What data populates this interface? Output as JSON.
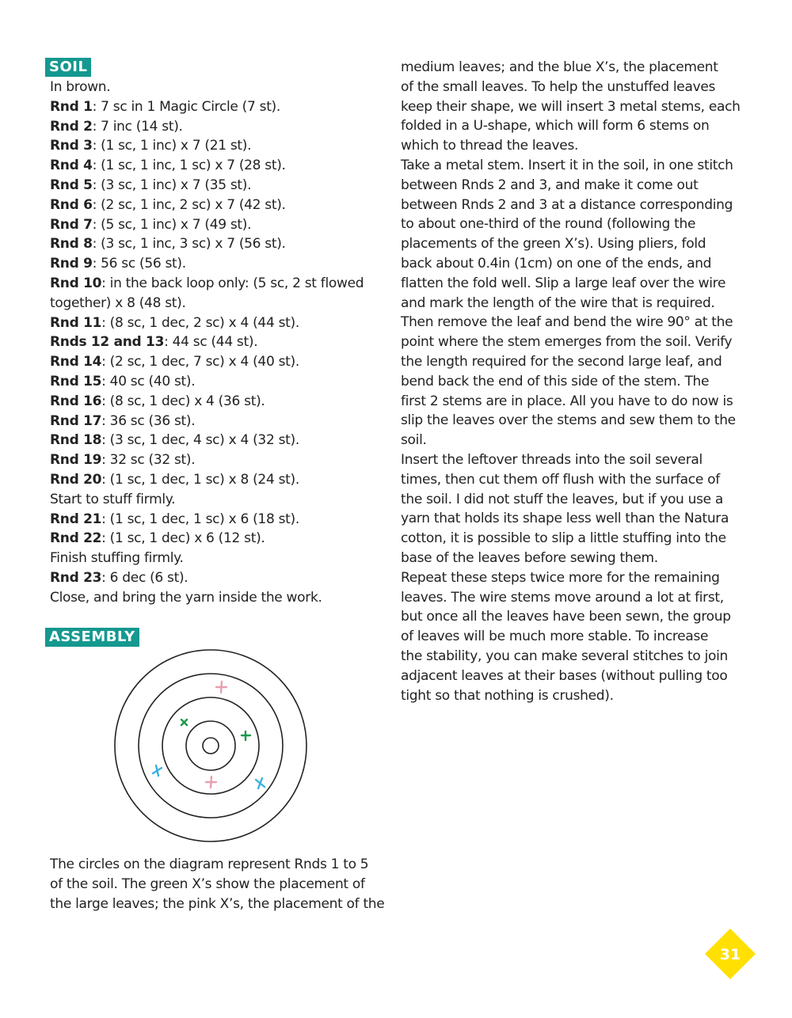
{
  "soil": {
    "heading": "SOIL",
    "intro": "In brown.",
    "rows": [
      {
        "label": "Rnd 1",
        "text": ": 7 sc in 1 Magic Circle (7 st)."
      },
      {
        "label": "Rnd 2",
        "text": ": 7 inc (14 st)."
      },
      {
        "label": "Rnd 3",
        "text": ": (1 sc, 1 inc) x 7 (21 st)."
      },
      {
        "label": "Rnd 4",
        "text": ": (1 sc, 1 inc, 1 sc) x 7 (28 st)."
      },
      {
        "label": "Rnd 5",
        "text": ": (3 sc, 1 inc) x 7 (35 st)."
      },
      {
        "label": "Rnd 6",
        "text": ": (2 sc, 1 inc, 2 sc) x 7 (42 st)."
      },
      {
        "label": "Rnd 7",
        "text": ": (5 sc, 1 inc) x 7 (49 st)."
      },
      {
        "label": "Rnd 8",
        "text": ": (3 sc, 1 inc, 3 sc) x 7 (56 st)."
      },
      {
        "label": "Rnd 9",
        "text": ": 56 sc (56 st)."
      },
      {
        "label": "Rnd 10",
        "text": ": in the back loop only: (5 sc, 2 st flowed"
      },
      {
        "label": "",
        "text": "together) x 8 (48 st)."
      },
      {
        "label": "Rnd 11",
        "text": ": (8 sc, 1 dec, 2 sc) x 4 (44 st)."
      },
      {
        "label": "Rnds 12 and 13",
        "text": ": 44 sc (44 st)."
      },
      {
        "label": "Rnd 14",
        "text": ": (2 sc, 1 dec, 7 sc) x 4 (40 st)."
      },
      {
        "label": "Rnd 15",
        "text": ": 40 sc (40 st)."
      },
      {
        "label": "Rnd 16",
        "text": ": (8 sc, 1 dec) x 4 (36 st)."
      },
      {
        "label": "Rnd 17",
        "text": ": 36 sc (36 st)."
      },
      {
        "label": "Rnd 18",
        "text": ": (3 sc, 1 dec, 4 sc) x 4 (32 st)."
      },
      {
        "label": "Rnd 19",
        "text": ": 32 sc (32 st)."
      },
      {
        "label": "Rnd 20",
        "text": ": (1 sc, 1 dec, 1 sc) x 8 (24 st)."
      },
      {
        "label": "",
        "text": "Start to stuff firmly."
      },
      {
        "label": "Rnd 21",
        "text": ": (1 sc, 1 dec, 1 sc) x 6 (18 st)."
      },
      {
        "label": "Rnd 22",
        "text": ": (1 sc, 1 dec) x 6 (12 st)."
      },
      {
        "label": "",
        "text": "Finish stuffing firmly."
      },
      {
        "label": "Rnd 23",
        "text": ": 6 dec (6 st)."
      },
      {
        "label": "",
        "text": "Close, and bring the yarn inside the work."
      }
    ]
  },
  "assembly": {
    "heading": "ASSEMBLY",
    "caption": [
      "The circles on the diagram represent Rnds 1 to 5",
      "of the soil. The green X’s show the placement of",
      "the large leaves; the pink X’s, the placement of the"
    ],
    "diagram_colors": {
      "green": "#1a9a4a",
      "pink": "#e8a0b0",
      "blue": "#3ab0e0"
    },
    "right_column": [
      "medium leaves; and the blue X’s, the placement",
      "of the small leaves. To help the unstuffed leaves",
      "keep their shape, we will insert 3 metal stems, each",
      "folded in a U-shape, which will form 6 stems on",
      "which to thread the leaves.",
      "Take a metal stem. Insert it in the soil, in one stitch",
      "between Rnds 2 and 3, and make it come out",
      "between Rnds 2 and 3 at a distance corresponding",
      "to about one-third of the round (following the",
      "placements of the green X’s). Using pliers, fold",
      "back about 0.4in (1cm) on one of the ends, and",
      "flatten the fold well. Slip a large leaf over the wire",
      "and mark the length of the wire that is required.",
      "Then remove the leaf and bend the wire 90° at the",
      "point where the stem emerges from the soil. Verify",
      "the length required for the second large leaf, and",
      "bend back the end of this side of the stem. The",
      "first 2 stems are in place. All you have to do now is",
      "slip the leaves over the stems and sew them to the",
      "soil.",
      "Insert the leftover threads into the soil several",
      "times, then cut them off flush with the surface of",
      "the soil. I did not stuff the leaves, but if you use a",
      "yarn that holds its shape less well than the Natura",
      "cotton, it is possible to slip a little stuffing into the",
      "base of the leaves before sewing them.",
      "Repeat these steps twice more for the remaining",
      "leaves. The wire stems move around a lot at first,",
      "but once all the leaves have been sewn, the group",
      "of leaves will be much more stable. To increase",
      "the stability, you can make several stitches to join",
      "adjacent leaves at their bases (without pulling too",
      "tight so that nothing is crushed)."
    ]
  },
  "page_number": "31",
  "colors": {
    "badge": "#14988f",
    "page_marker": "#ffe000"
  }
}
